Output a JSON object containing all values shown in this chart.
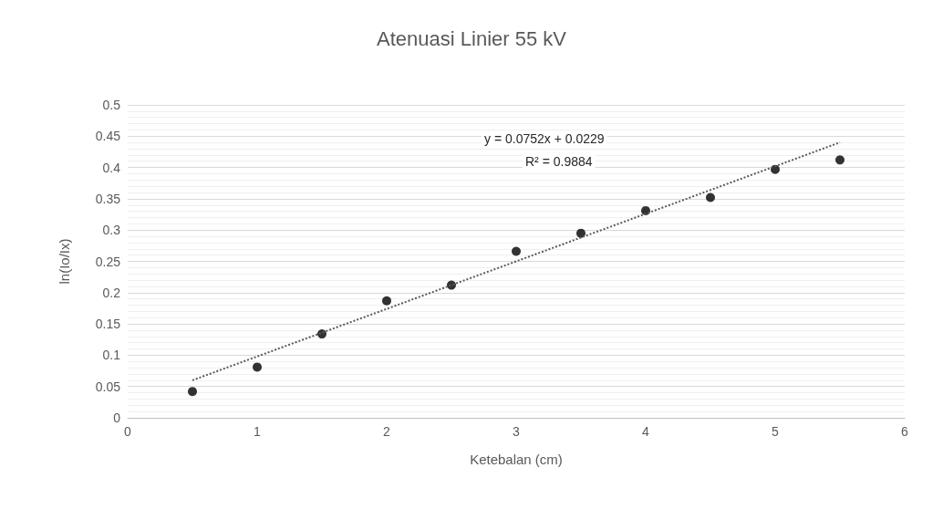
{
  "chart_data": {
    "type": "scatter",
    "title": "Atenuasi Linier 55 kV",
    "xlabel": "Ketebalan (cm)",
    "ylabel": "ln(Io/Ix)",
    "x": [
      0.5,
      1,
      1.5,
      2,
      2.5,
      3,
      3.5,
      4,
      4.5,
      5,
      5.5
    ],
    "series": [
      {
        "color": "#000000",
        "marker": "circle",
        "values": [
          0.042,
          0.081,
          0.134,
          0.187,
          0.212,
          0.266,
          0.295,
          0.331,
          0.352,
          0.397,
          0.412
        ]
      },
      {
        "type": "line",
        "color": "#595959",
        "line_style": "dotted",
        "marker": "none",
        "x": [
          0.5,
          5.5
        ],
        "values": [
          0.06,
          0.44
        ]
      }
    ],
    "xlim": [
      0,
      6
    ],
    "xticks": [
      0,
      1,
      2,
      3,
      4,
      5,
      6
    ],
    "ylim": [
      0,
      0.5
    ],
    "yticks": [
      0,
      0.05,
      0.1,
      0.15,
      0.2,
      0.25,
      0.3,
      0.35,
      0.4,
      0.45,
      0.5
    ],
    "grid": "y",
    "annotations": [
      "y = 0.0752x + 0.0229",
      "R² = 0.9884"
    ]
  }
}
